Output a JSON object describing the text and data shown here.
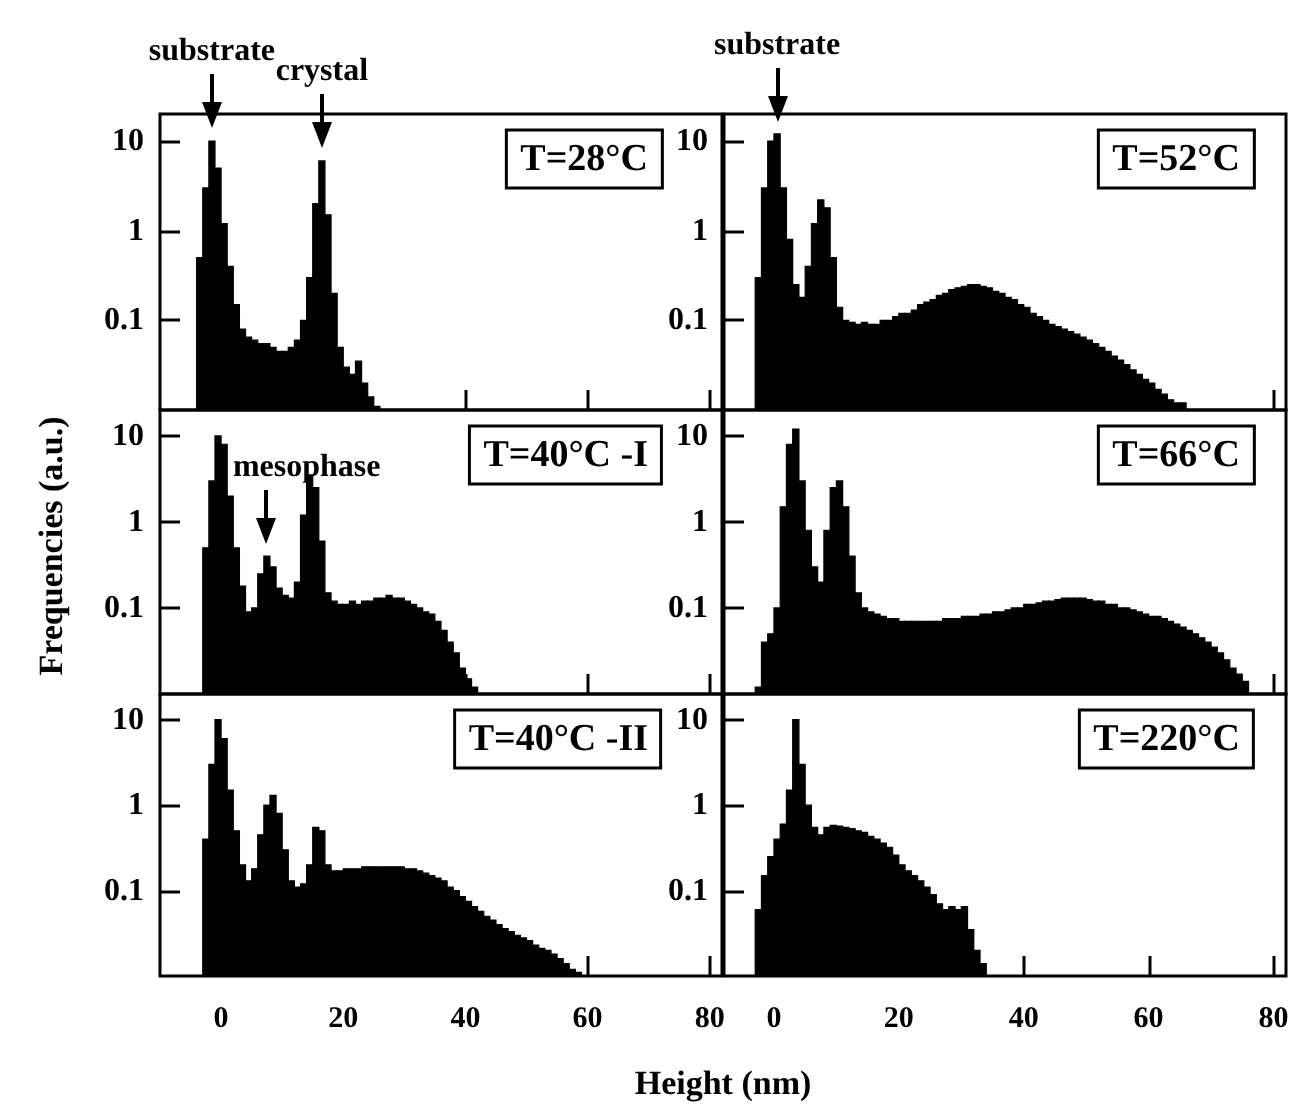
{
  "chart_data": [
    {
      "type": "histogram",
      "title": "T=28°C",
      "color": "#000000",
      "log": true,
      "tick_labels": "y",
      "xlim": [
        -10,
        82
      ],
      "xticks": [
        0,
        20,
        40,
        60,
        80
      ],
      "ylim": [
        0.01,
        20
      ],
      "yticks": [
        0.1,
        1,
        10
      ],
      "bins": [
        -4,
        -3,
        -2,
        -1,
        0,
        1,
        2,
        3,
        4,
        5,
        6,
        7,
        8,
        9,
        10,
        11,
        12,
        13,
        14,
        15,
        16,
        17,
        18,
        19,
        20,
        21,
        22,
        23,
        24,
        25,
        26
      ],
      "values": [
        0.5,
        3,
        10,
        5,
        1.2,
        0.4,
        0.15,
        0.08,
        0.065,
        0.06,
        0.055,
        0.055,
        0.05,
        0.045,
        0.045,
        0.05,
        0.06,
        0.1,
        0.3,
        2,
        6,
        1.5,
        0.2,
        0.05,
        0.03,
        0.025,
        0.035,
        0.02,
        0.014,
        0.011
      ],
      "annotations": [
        {
          "text": "substrate",
          "x": -1.5,
          "y": 10
        },
        {
          "text": "crystal",
          "x": 16.5,
          "y": 6
        }
      ]
    },
    {
      "type": "histogram",
      "title": "T=52°C",
      "color": "#000000",
      "log": true,
      "tick_labels": "y",
      "xlim": [
        -8,
        82
      ],
      "xticks": [
        0,
        20,
        40,
        60,
        80
      ],
      "ylim": [
        0.01,
        20
      ],
      "yticks": [
        0.1,
        1,
        10
      ],
      "bins": [
        -3,
        -2,
        -1,
        0,
        1,
        2,
        3,
        4,
        5,
        6,
        7,
        8,
        9,
        10,
        11,
        12,
        13,
        14,
        15,
        16,
        17,
        18,
        19,
        20,
        21,
        22,
        23,
        24,
        25,
        26,
        27,
        28,
        29,
        30,
        31,
        32,
        33,
        34,
        35,
        36,
        37,
        38,
        39,
        40,
        41,
        42,
        43,
        44,
        45,
        46,
        47,
        48,
        49,
        50,
        51,
        52,
        53,
        54,
        55,
        56,
        57,
        58,
        59,
        60,
        61,
        62,
        63,
        64,
        65,
        66
      ],
      "values": [
        0.3,
        3,
        10,
        12,
        3,
        0.8,
        0.25,
        0.18,
        0.4,
        1.2,
        2.2,
        1.8,
        0.5,
        0.14,
        0.1,
        0.095,
        0.09,
        0.095,
        0.09,
        0.09,
        0.1,
        0.1,
        0.11,
        0.12,
        0.12,
        0.13,
        0.15,
        0.16,
        0.17,
        0.19,
        0.2,
        0.22,
        0.23,
        0.24,
        0.25,
        0.25,
        0.24,
        0.23,
        0.21,
        0.2,
        0.18,
        0.17,
        0.15,
        0.14,
        0.12,
        0.11,
        0.1,
        0.09,
        0.085,
        0.08,
        0.075,
        0.07,
        0.065,
        0.06,
        0.055,
        0.05,
        0.045,
        0.04,
        0.036,
        0.032,
        0.028,
        0.025,
        0.022,
        0.02,
        0.017,
        0.015,
        0.013,
        0.012,
        0.012
      ],
      "annotations": [
        {
          "text": "substrate",
          "x": 0.5,
          "y": 12
        }
      ]
    },
    {
      "type": "histogram",
      "title": "T=40°C -I",
      "color": "#000000",
      "log": true,
      "tick_labels": "y",
      "ylabel": "Frequencies (a.u.)",
      "xlim": [
        -10,
        82
      ],
      "xticks": [
        0,
        20,
        40,
        60,
        80
      ],
      "ylim": [
        0.01,
        20
      ],
      "yticks": [
        0.1,
        1,
        10
      ],
      "bins": [
        -3,
        -2,
        -1,
        0,
        1,
        2,
        3,
        4,
        5,
        6,
        7,
        8,
        9,
        10,
        11,
        12,
        13,
        14,
        15,
        16,
        17,
        18,
        19,
        20,
        21,
        22,
        23,
        24,
        25,
        26,
        27,
        28,
        29,
        30,
        31,
        32,
        33,
        34,
        35,
        36,
        37,
        38,
        39,
        40,
        41,
        42
      ],
      "values": [
        0.5,
        3,
        10,
        8,
        2,
        0.5,
        0.18,
        0.09,
        0.1,
        0.25,
        0.4,
        0.3,
        0.17,
        0.14,
        0.13,
        0.2,
        1.2,
        3.5,
        2.5,
        0.6,
        0.15,
        0.12,
        0.11,
        0.11,
        0.12,
        0.11,
        0.12,
        0.12,
        0.13,
        0.13,
        0.14,
        0.13,
        0.13,
        0.12,
        0.11,
        0.1,
        0.09,
        0.085,
        0.07,
        0.055,
        0.04,
        0.03,
        0.02,
        0.015,
        0.012
      ],
      "annotations": [
        {
          "text": "mesophase",
          "x": 7.5,
          "y": 0.4
        }
      ]
    },
    {
      "type": "histogram",
      "title": "T=66°C",
      "color": "#000000",
      "log": true,
      "tick_labels": "y",
      "xlim": [
        -8,
        82
      ],
      "xticks": [
        0,
        20,
        40,
        60,
        80
      ],
      "ylim": [
        0.01,
        20
      ],
      "yticks": [
        0.1,
        1,
        10
      ],
      "bins": [
        -3,
        -2,
        -1,
        0,
        1,
        2,
        3,
        4,
        5,
        6,
        7,
        8,
        9,
        10,
        11,
        12,
        13,
        14,
        15,
        16,
        17,
        18,
        19,
        20,
        21,
        22,
        23,
        24,
        25,
        26,
        27,
        28,
        29,
        30,
        31,
        32,
        33,
        34,
        35,
        36,
        37,
        38,
        39,
        40,
        41,
        42,
        43,
        44,
        45,
        46,
        47,
        48,
        49,
        50,
        51,
        52,
        53,
        54,
        55,
        56,
        57,
        58,
        59,
        60,
        61,
        62,
        63,
        64,
        65,
        66,
        67,
        68,
        69,
        70,
        71,
        72,
        73,
        74,
        75,
        76
      ],
      "values": [
        0.012,
        0.04,
        0.05,
        0.1,
        1.5,
        8,
        12,
        3,
        0.8,
        0.3,
        0.2,
        0.8,
        2.5,
        3,
        1.5,
        0.4,
        0.15,
        0.1,
        0.09,
        0.085,
        0.08,
        0.075,
        0.075,
        0.07,
        0.07,
        0.07,
        0.07,
        0.07,
        0.07,
        0.07,
        0.075,
        0.075,
        0.075,
        0.08,
        0.08,
        0.08,
        0.085,
        0.085,
        0.09,
        0.09,
        0.095,
        0.1,
        0.1,
        0.11,
        0.11,
        0.115,
        0.12,
        0.12,
        0.125,
        0.13,
        0.13,
        0.13,
        0.13,
        0.125,
        0.12,
        0.12,
        0.11,
        0.11,
        0.1,
        0.1,
        0.095,
        0.09,
        0.085,
        0.08,
        0.08,
        0.075,
        0.07,
        0.065,
        0.06,
        0.055,
        0.05,
        0.045,
        0.04,
        0.035,
        0.03,
        0.025,
        0.02,
        0.017,
        0.014
      ]
    },
    {
      "type": "histogram",
      "title": "T=40°C -II",
      "color": "#000000",
      "log": true,
      "xlabel": "Height (nm)",
      "xlim": [
        -10,
        82
      ],
      "xticks": [
        0,
        20,
        40,
        60,
        80
      ],
      "ylim": [
        0.01,
        20
      ],
      "yticks": [
        0.1,
        1,
        10
      ],
      "bins": [
        -3,
        -2,
        -1,
        0,
        1,
        2,
        3,
        4,
        5,
        6,
        7,
        8,
        9,
        10,
        11,
        12,
        13,
        14,
        15,
        16,
        17,
        18,
        19,
        20,
        21,
        22,
        23,
        24,
        25,
        26,
        27,
        28,
        29,
        30,
        31,
        32,
        33,
        34,
        35,
        36,
        37,
        38,
        39,
        40,
        41,
        42,
        43,
        44,
        45,
        46,
        47,
        48,
        49,
        50,
        51,
        52,
        53,
        54,
        55,
        56,
        57,
        58,
        59
      ],
      "values": [
        0.4,
        3,
        10,
        6,
        1.5,
        0.5,
        0.2,
        0.13,
        0.18,
        0.45,
        1,
        1.3,
        0.8,
        0.3,
        0.13,
        0.11,
        0.12,
        0.2,
        0.55,
        0.5,
        0.2,
        0.17,
        0.17,
        0.18,
        0.18,
        0.18,
        0.19,
        0.19,
        0.19,
        0.19,
        0.19,
        0.19,
        0.19,
        0.18,
        0.18,
        0.17,
        0.16,
        0.15,
        0.14,
        0.13,
        0.11,
        0.1,
        0.085,
        0.075,
        0.065,
        0.057,
        0.05,
        0.045,
        0.04,
        0.036,
        0.033,
        0.03,
        0.028,
        0.026,
        0.023,
        0.021,
        0.02,
        0.018,
        0.016,
        0.014,
        0.012,
        0.011
      ]
    },
    {
      "type": "histogram",
      "title": "T=220°C",
      "color": "#000000",
      "log": true,
      "xlim": [
        -8,
        82
      ],
      "xticks": [
        0,
        20,
        40,
        60,
        80
      ],
      "ylim": [
        0.01,
        20
      ],
      "yticks": [
        0.1,
        1,
        10
      ],
      "bins": [
        -3,
        -2,
        -1,
        0,
        1,
        2,
        3,
        4,
        5,
        6,
        7,
        8,
        9,
        10,
        11,
        12,
        13,
        14,
        15,
        16,
        17,
        18,
        19,
        20,
        21,
        22,
        23,
        24,
        25,
        26,
        27,
        28,
        29,
        30,
        31,
        32,
        33,
        34
      ],
      "values": [
        0.06,
        0.15,
        0.25,
        0.4,
        0.6,
        1.5,
        10,
        3,
        1,
        0.55,
        0.45,
        0.55,
        0.58,
        0.57,
        0.55,
        0.53,
        0.5,
        0.48,
        0.43,
        0.4,
        0.36,
        0.32,
        0.26,
        0.2,
        0.17,
        0.15,
        0.13,
        0.11,
        0.09,
        0.07,
        0.06,
        0.065,
        0.06,
        0.065,
        0.035,
        0.02,
        0.014
      ]
    }
  ]
}
